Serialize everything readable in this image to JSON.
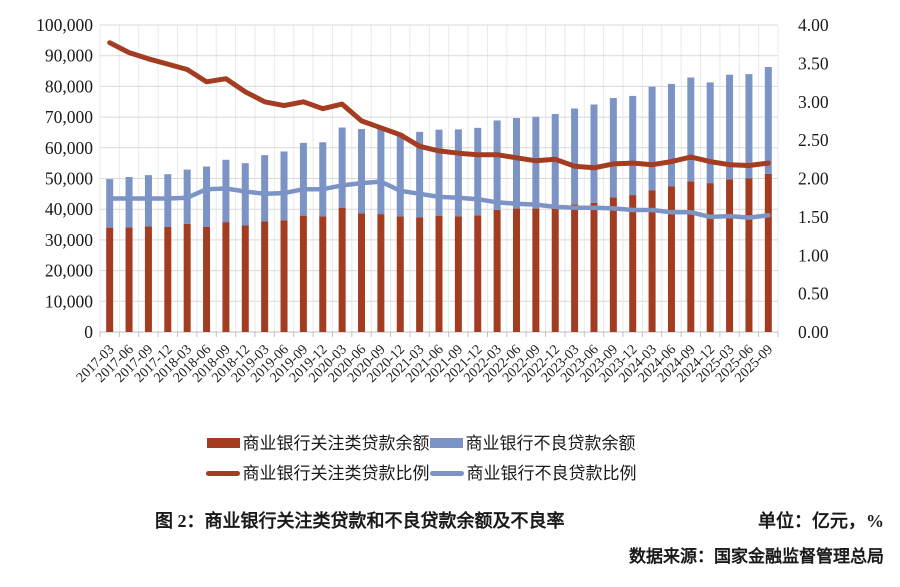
{
  "chart_data": {
    "type": "bar",
    "subtype": "stacked-bars-with-lines-combo",
    "categories": [
      "2017-03",
      "2017-06",
      "2017-09",
      "2017-12",
      "2018-03",
      "2018-06",
      "2018-09",
      "2018-12",
      "2019-03",
      "2019-06",
      "2019-09",
      "2019-12",
      "2020-03",
      "2020-06",
      "2020-09",
      "2020-12",
      "2021-03",
      "2021-06",
      "2021-09",
      "2021-12",
      "2022-03",
      "2022-06",
      "2022-09",
      "2022-12",
      "2023-03",
      "2023-06",
      "2023-09",
      "2023-12",
      "2024-03",
      "2024-06",
      "2024-09",
      "2024-12",
      "2025-03",
      "2025-06",
      "2025-09"
    ],
    "series": [
      {
        "name": "商业银行关注类贷款余额",
        "type": "bar",
        "stack": "balance",
        "axis": "left",
        "color": "#A43C22",
        "values": [
          34000,
          34100,
          34400,
          34300,
          35200,
          34300,
          35800,
          34700,
          36000,
          36400,
          37900,
          37700,
          40500,
          38700,
          38400,
          37700,
          37300,
          37900,
          37700,
          38000,
          39800,
          40200,
          40200,
          41200,
          41600,
          42100,
          43900,
          44600,
          46200,
          47400,
          49100,
          48500,
          49700,
          50100,
          51500
        ]
      },
      {
        "name": "商业银行不良贷款余额",
        "type": "bar",
        "stack": "balance",
        "axis": "left",
        "color": "#7C93C5",
        "values": [
          15800,
          16400,
          16700,
          17100,
          17700,
          19600,
          20300,
          20300,
          21600,
          22400,
          23700,
          24100,
          26100,
          27400,
          28400,
          27000,
          27900,
          28000,
          28300,
          28500,
          29100,
          29500,
          29900,
          29800,
          31200,
          32000,
          32300,
          32300,
          33700,
          33400,
          33800,
          32800,
          34100,
          33900,
          34800
        ]
      },
      {
        "name": "商业银行关注类贷款比例",
        "type": "line",
        "axis": "right",
        "color": "#A43C22",
        "values": [
          3.77,
          3.64,
          3.56,
          3.49,
          3.42,
          3.26,
          3.3,
          3.13,
          3.0,
          2.95,
          3.0,
          2.91,
          2.97,
          2.75,
          2.66,
          2.57,
          2.42,
          2.36,
          2.33,
          2.31,
          2.31,
          2.27,
          2.23,
          2.25,
          2.16,
          2.14,
          2.19,
          2.2,
          2.18,
          2.22,
          2.28,
          2.22,
          2.18,
          2.17,
          2.2
        ]
      },
      {
        "name": "商业银行不良贷款比例",
        "type": "line",
        "axis": "right",
        "color": "#7C93C5",
        "values": [
          1.74,
          1.74,
          1.74,
          1.74,
          1.75,
          1.86,
          1.87,
          1.83,
          1.8,
          1.81,
          1.86,
          1.86,
          1.91,
          1.94,
          1.96,
          1.84,
          1.8,
          1.76,
          1.75,
          1.73,
          1.69,
          1.67,
          1.66,
          1.63,
          1.62,
          1.62,
          1.61,
          1.59,
          1.59,
          1.56,
          1.56,
          1.5,
          1.51,
          1.49,
          1.52
        ]
      }
    ],
    "left_axis": {
      "min": 0,
      "max": 100000,
      "step": 10000,
      "tick_labels": [
        "0",
        "10,000",
        "20,000",
        "30,000",
        "40,000",
        "50,000",
        "60,000",
        "70,000",
        "80,000",
        "90,000",
        "100,000"
      ]
    },
    "right_axis": {
      "min": 0,
      "max": 4,
      "step": 0.5,
      "tick_labels": [
        "0.00",
        "0.50",
        "1.00",
        "1.50",
        "2.00",
        "2.50",
        "3.00",
        "3.50",
        "4.00"
      ]
    },
    "grid": {
      "horizontal": true,
      "vertical": true,
      "h_color": "#D9D9D9",
      "v_color": "#E9E9E9",
      "axis_color": "#BFBFBF"
    },
    "legend_position": "bottom",
    "title": "图 2：商业银行关注类贷款和不良贷款余额及不良率",
    "xlabel": "",
    "ylabel_left_unit": "亿元",
    "ylabel_right_unit": "%"
  },
  "legend": {
    "items": [
      {
        "label": "商业银行关注类贷款余额",
        "shape": "bar",
        "color": "#A43C22"
      },
      {
        "label": "商业银行不良贷款余额",
        "shape": "bar",
        "color": "#7C93C5"
      },
      {
        "label": "商业银行关注类贷款比例",
        "shape": "line",
        "color": "#A43C22"
      },
      {
        "label": "商业银行不良贷款比例",
        "shape": "line",
        "color": "#7C93C5"
      }
    ]
  },
  "caption": {
    "figure": "图 2：商业银行关注类贷款和不良贷款余额及不良率",
    "unit": "单位：亿元，%",
    "source": "数据来源：国家金融监督管理总局"
  }
}
